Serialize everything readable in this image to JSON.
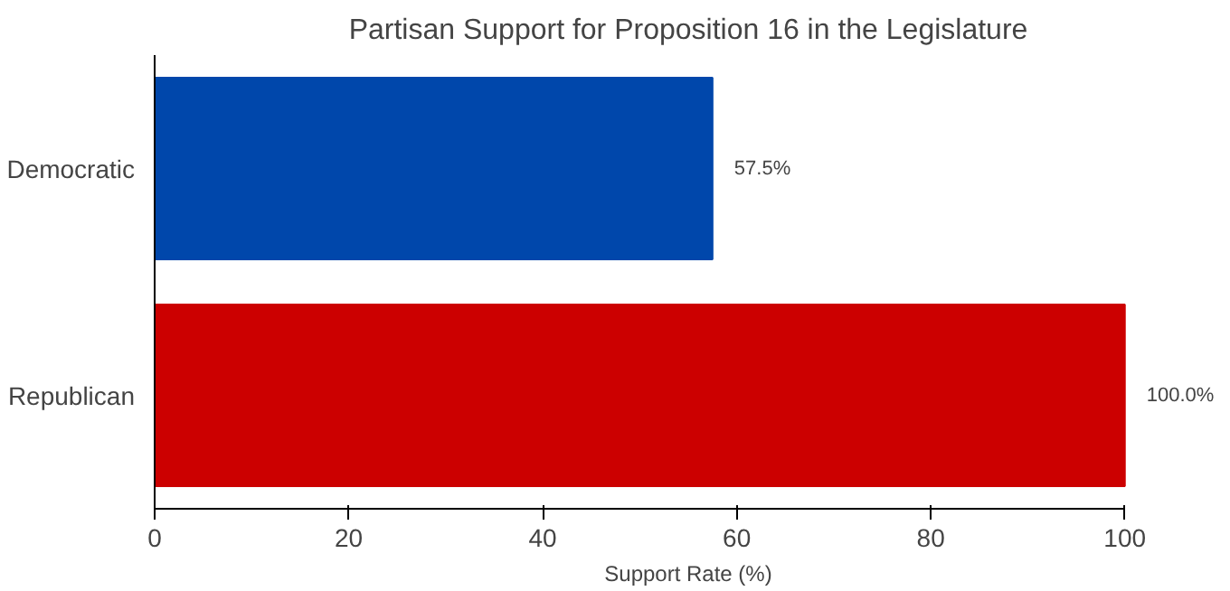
{
  "chart_data": {
    "type": "bar",
    "orientation": "horizontal",
    "title": "Partisan Support for Proposition 16 in the Legislature",
    "xlabel": "Support Rate (%)",
    "categories": [
      "Democratic",
      "Republican"
    ],
    "values": [
      57.5,
      100.0
    ],
    "colors": [
      "#0047ab",
      "#cc0000"
    ],
    "value_labels": [
      "57.5%",
      "100.0%"
    ],
    "xlim": [
      0,
      100
    ],
    "xticks": [
      0,
      20,
      40,
      60,
      80,
      100
    ],
    "grid": false
  }
}
